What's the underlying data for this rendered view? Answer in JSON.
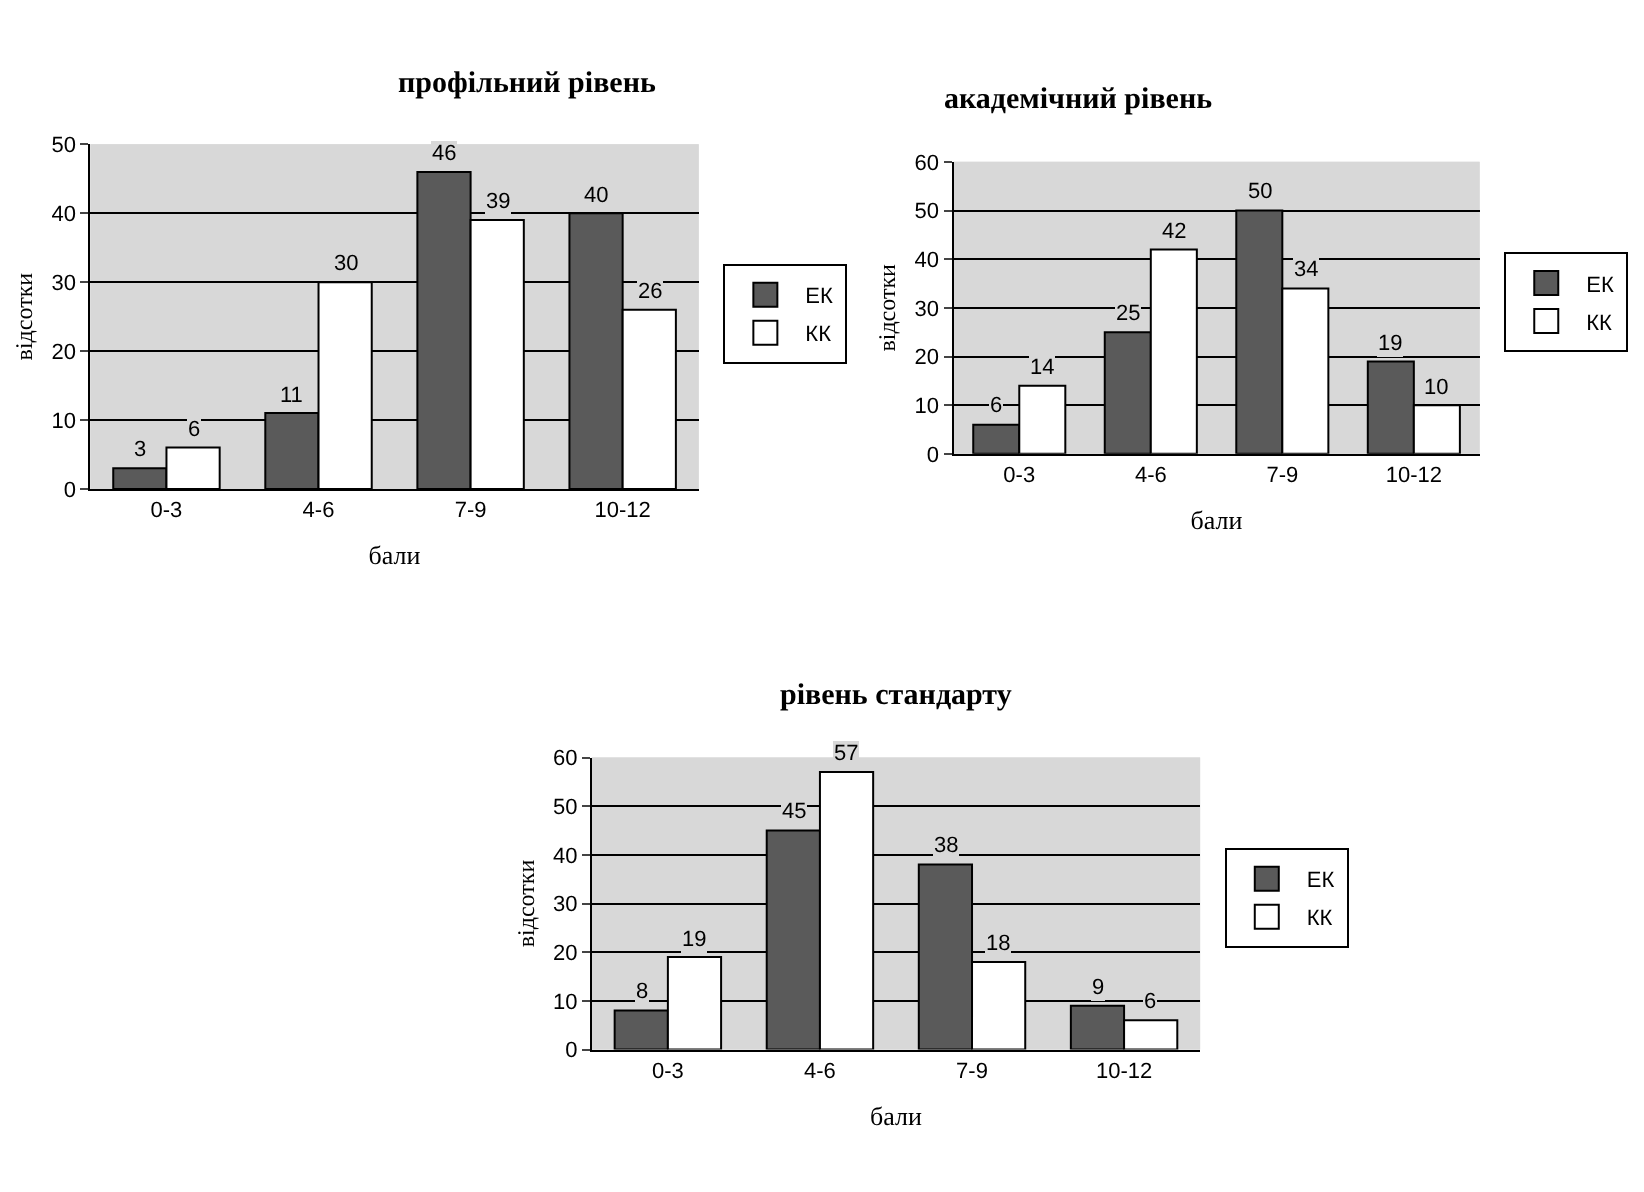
{
  "chart_data": [
    {
      "type": "bar",
      "title": "профільний рівень",
      "xlabel": "бали",
      "ylabel": "відсотки",
      "categories": [
        "0-3",
        "4-6",
        "7-9",
        "10-12"
      ],
      "series": [
        {
          "name": "ЕК",
          "color": "#5a5a5a",
          "values": [
            3,
            11,
            46,
            40
          ]
        },
        {
          "name": "КК",
          "color": "#ffffff",
          "values": [
            6,
            30,
            39,
            26
          ]
        }
      ],
      "ylim": [
        0,
        50
      ],
      "yticks": [
        0,
        10,
        20,
        30,
        40,
        50
      ],
      "grid": "y",
      "legend": "right",
      "data_labels": true
    },
    {
      "type": "bar",
      "title": "академічний рівень",
      "xlabel": "бали",
      "ylabel": "відсотки",
      "categories": [
        "0-3",
        "4-6",
        "7-9",
        "10-12"
      ],
      "series": [
        {
          "name": "ЕК",
          "color": "#5a5a5a",
          "values": [
            6,
            25,
            50,
            19
          ]
        },
        {
          "name": "КК",
          "color": "#ffffff",
          "values": [
            14,
            42,
            34,
            10
          ]
        }
      ],
      "ylim": [
        0,
        60
      ],
      "yticks": [
        0,
        10,
        20,
        30,
        40,
        50,
        60
      ],
      "grid": "y",
      "legend": "right",
      "data_labels": true
    },
    {
      "type": "bar",
      "title": "рівень стандарту",
      "xlabel": "бали",
      "ylabel": "відсотки",
      "categories": [
        "0-3",
        "4-6",
        "7-9",
        "10-12"
      ],
      "series": [
        {
          "name": "ЕК",
          "color": "#5a5a5a",
          "values": [
            8,
            45,
            38,
            9
          ]
        },
        {
          "name": "КК",
          "color": "#ffffff",
          "values": [
            19,
            57,
            18,
            6
          ]
        }
      ],
      "ylim": [
        0,
        60
      ],
      "yticks": [
        0,
        10,
        20,
        30,
        40,
        50,
        60
      ],
      "grid": "y",
      "legend": "right",
      "data_labels": true
    }
  ]
}
